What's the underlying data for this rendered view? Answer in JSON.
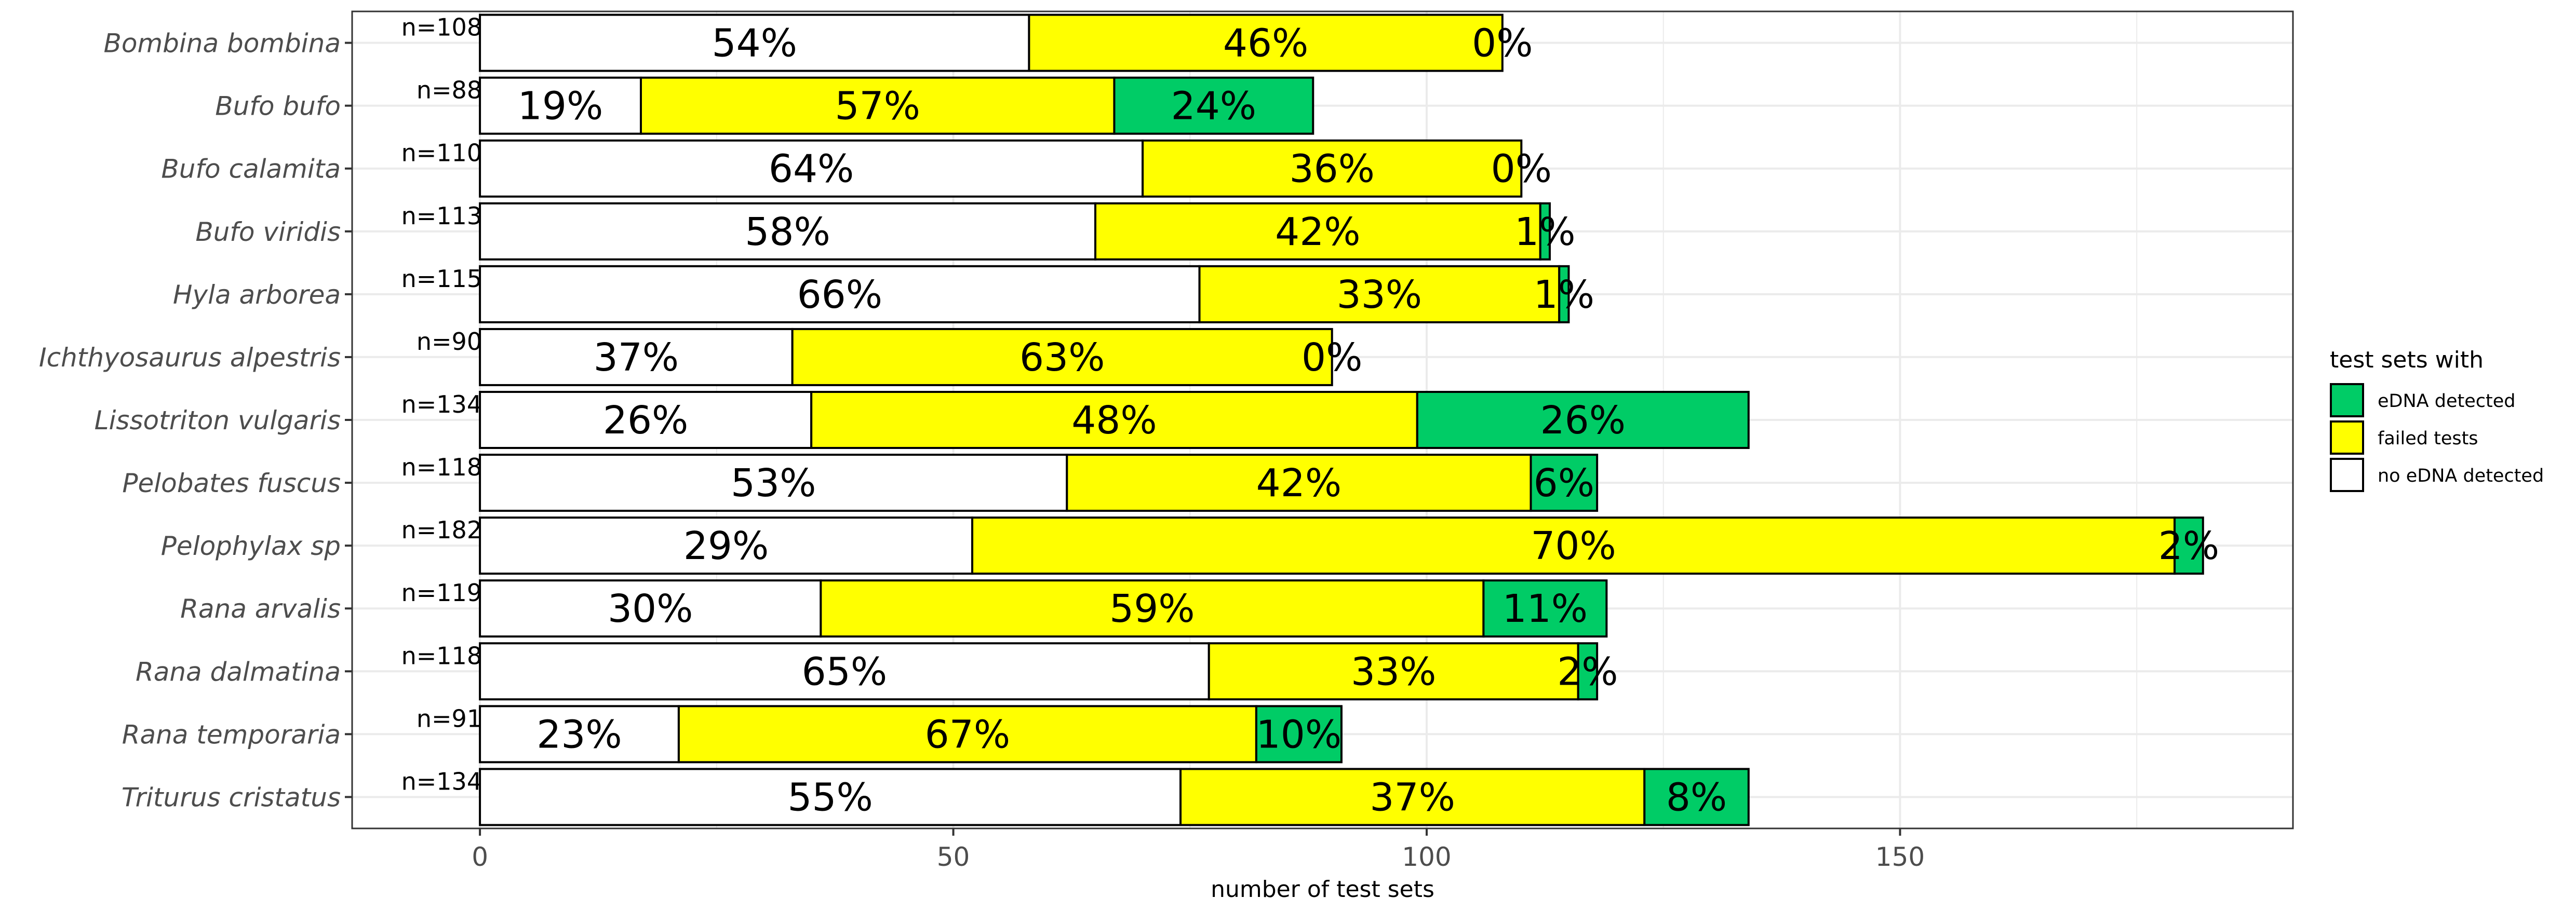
{
  "chart_data": {
    "type": "bar",
    "orientation": "horizontal",
    "stacked": true,
    "xlabel": "number of test sets",
    "ylabel": "",
    "xlim": [
      -13.5,
      191.5
    ],
    "xticks": [
      0,
      50,
      100,
      150
    ],
    "grid": true,
    "legend": {
      "title": "test sets with",
      "position": "right",
      "entries": [
        {
          "key": "edna",
          "label": "eDNA detected",
          "color": "#00CC66"
        },
        {
          "key": "failed",
          "label": "failed tests",
          "color": "#FFFF00"
        },
        {
          "key": "none",
          "label": "no eDNA detected",
          "color": "#FFFFFF"
        }
      ]
    },
    "series_order": [
      "none",
      "failed",
      "edna"
    ],
    "categories": [
      "Bombina bombina",
      "Bufo bufo",
      "Bufo calamita",
      "Bufo viridis",
      "Hyla arborea",
      "Ichthyosaurus alpestris",
      "Lissotriton vulgaris",
      "Pelobates fuscus",
      "Pelophylax sp",
      "Rana arvalis",
      "Rana dalmatina",
      "Rana temporaria",
      "Triturus cristatus"
    ],
    "rows": [
      {
        "n_label": "n=108",
        "values": {
          "none": 58,
          "failed": 50,
          "edna": 0
        },
        "labels": {
          "none": "54%",
          "failed": "46%",
          "edna": "0%"
        }
      },
      {
        "n_label": "n=88",
        "values": {
          "none": 17,
          "failed": 50,
          "edna": 21
        },
        "labels": {
          "none": "19%",
          "failed": "57%",
          "edna": "24%"
        }
      },
      {
        "n_label": "n=110",
        "values": {
          "none": 70,
          "failed": 40,
          "edna": 0
        },
        "labels": {
          "none": "64%",
          "failed": "36%",
          "edna": "0%"
        }
      },
      {
        "n_label": "n=113",
        "values": {
          "none": 65,
          "failed": 47,
          "edna": 1
        },
        "labels": {
          "none": "58%",
          "failed": "42%",
          "edna": "1%"
        }
      },
      {
        "n_label": "n=115",
        "values": {
          "none": 76,
          "failed": 38,
          "edna": 1
        },
        "labels": {
          "none": "66%",
          "failed": "33%",
          "edna": "1%"
        }
      },
      {
        "n_label": "n=90",
        "values": {
          "none": 33,
          "failed": 57,
          "edna": 0
        },
        "labels": {
          "none": "37%",
          "failed": "63%",
          "edna": "0%"
        }
      },
      {
        "n_label": "n=134",
        "values": {
          "none": 35,
          "failed": 64,
          "edna": 35
        },
        "labels": {
          "none": "26%",
          "failed": "48%",
          "edna": "26%"
        }
      },
      {
        "n_label": "n=118",
        "values": {
          "none": 62,
          "failed": 49,
          "edna": 7
        },
        "labels": {
          "none": "53%",
          "failed": "42%",
          "edna": "6%"
        }
      },
      {
        "n_label": "n=182",
        "values": {
          "none": 52,
          "failed": 127,
          "edna": 3
        },
        "labels": {
          "none": "29%",
          "failed": "70%",
          "edna": "2%"
        }
      },
      {
        "n_label": "n=119",
        "values": {
          "none": 36,
          "failed": 70,
          "edna": 13
        },
        "labels": {
          "none": "30%",
          "failed": "59%",
          "edna": "11%"
        }
      },
      {
        "n_label": "n=118",
        "values": {
          "none": 77,
          "failed": 39,
          "edna": 2
        },
        "labels": {
          "none": "65%",
          "failed": "33%",
          "edna": "2%"
        }
      },
      {
        "n_label": "n=91",
        "values": {
          "none": 21,
          "failed": 61,
          "edna": 9
        },
        "labels": {
          "none": "23%",
          "failed": "67%",
          "edna": "10%"
        }
      },
      {
        "n_label": "n=134",
        "values": {
          "none": 74,
          "failed": 49,
          "edna": 11
        },
        "labels": {
          "none": "55%",
          "failed": "37%",
          "edna": "8%"
        }
      }
    ]
  }
}
